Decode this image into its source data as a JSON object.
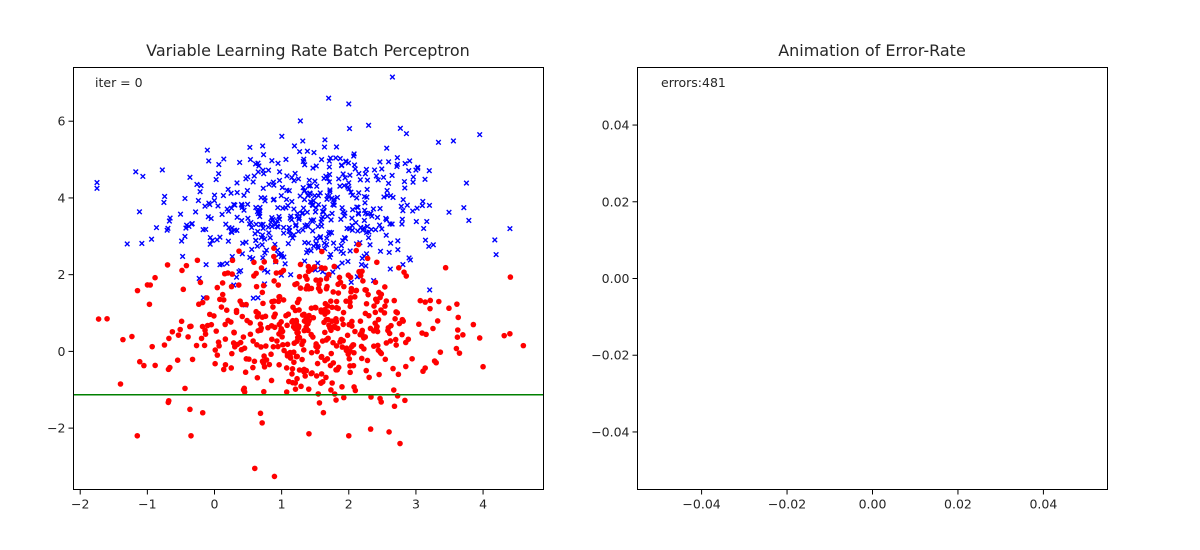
{
  "chart_data": [
    {
      "type": "scatter",
      "title": "Variable Learning Rate Batch Perceptron",
      "annotation": "iter = 0",
      "xlim": [
        -2.1,
        4.9
      ],
      "ylim": [
        -3.6,
        7.4
      ],
      "x_ticks": [
        -2,
        -1,
        0,
        1,
        2,
        3,
        4
      ],
      "y_ticks": [
        -2,
        0,
        2,
        4,
        6
      ],
      "x_tick_labels": [
        "−2",
        "−1",
        "0",
        "1",
        "2",
        "3",
        "4"
      ],
      "y_tick_labels": [
        "−2",
        "0",
        "2",
        "4",
        "6"
      ],
      "grid": false,
      "series": [
        {
          "marker": "x",
          "color": "#0000ff",
          "n": 500,
          "center": [
            1.4,
            3.6
          ],
          "spread": [
            1.0,
            0.95
          ],
          "y_floor": 0.9
        },
        {
          "marker": "o",
          "color": "#ff0000",
          "n": 500,
          "center": [
            1.4,
            0.6
          ],
          "spread": [
            1.0,
            1.0
          ],
          "y_ceiling": 2.8
        }
      ],
      "highlighted_points": {
        "blue": [
          [
            -1.75,
            4.4
          ],
          [
            -1.75,
            4.25
          ],
          [
            2.65,
            7.15
          ],
          [
            1.7,
            6.6
          ],
          [
            2.0,
            6.45
          ],
          [
            3.95,
            5.65
          ],
          [
            4.4,
            3.2
          ],
          [
            -1.3,
            2.8
          ]
        ],
        "red": [
          [
            4.6,
            0.15
          ],
          [
            -1.6,
            0.85
          ],
          [
            0.6,
            -3.05
          ],
          [
            -1.15,
            -2.2
          ],
          [
            -0.35,
            -2.2
          ],
          [
            2.0,
            -2.2
          ],
          [
            2.6,
            -2.1
          ],
          [
            -1.4,
            -0.85
          ],
          [
            4.0,
            -0.4
          ],
          [
            3.95,
            0.35
          ]
        ]
      },
      "line": {
        "type": "decision-boundary",
        "color": "#008000",
        "y_start": -1.13,
        "y_end": -1.13
      }
    },
    {
      "type": "line",
      "title": "Animation of Error-Rate",
      "annotation": "errors:481",
      "xlim": [
        -0.055,
        0.055
      ],
      "ylim": [
        -0.055,
        0.055
      ],
      "x_ticks": [
        -0.04,
        -0.02,
        0.0,
        0.02,
        0.04
      ],
      "y_ticks": [
        -0.04,
        -0.02,
        0.0,
        0.02,
        0.04
      ],
      "x_tick_labels": [
        "−0.04",
        "−0.02",
        "0.00",
        "0.02",
        "0.04"
      ],
      "y_tick_labels": [
        "−0.04",
        "−0.02",
        "0.00",
        "0.02",
        "0.04"
      ],
      "grid": false,
      "series": []
    }
  ]
}
